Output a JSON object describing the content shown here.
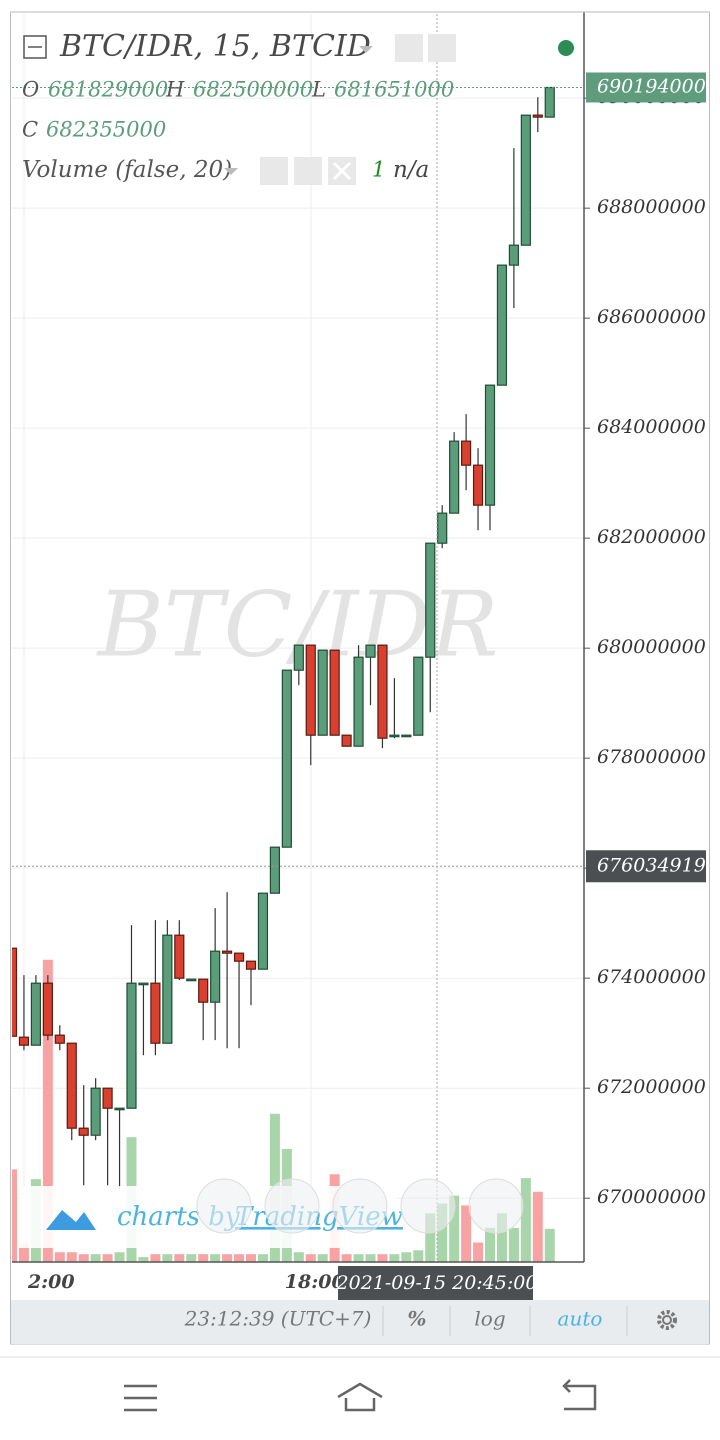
{
  "chart_data": {
    "type": "candlestick",
    "title": "BTC/IDR, 15, BTCID",
    "watermark": "BTC/IDR",
    "legend": {
      "open_label": "O",
      "open": 681829000,
      "high_label": "H",
      "high": 682500000,
      "low_label": "L",
      "low": 681651000,
      "close_label": "C",
      "close": 682355000
    },
    "volume_legend": {
      "name": "Volume (false, 20)",
      "index": 1,
      "value": "n/a"
    },
    "categories": [
      null,
      "2:00",
      null,
      null,
      null,
      null,
      null,
      null,
      null,
      null,
      null,
      null,
      null,
      null,
      null,
      null,
      null,
      null,
      null,
      null,
      null,
      null,
      null,
      null,
      null,
      "18:00",
      null,
      null,
      null,
      null,
      null,
      null,
      null,
      null,
      null,
      null,
      null,
      null,
      null,
      null,
      null,
      null,
      null,
      null,
      null,
      null
    ],
    "open": [
      674545000,
      672927000,
      672782000,
      673909000,
      672964000,
      672818000,
      671273000,
      671145000,
      672000000,
      671636000,
      671636000,
      673909000,
      673909000,
      672818000,
      674782000,
      673982000,
      673982000,
      673564000,
      674491000,
      674455000,
      674309000,
      674164000,
      675545000,
      676382000,
      679600000,
      680055000,
      678418000,
      679964000,
      678418000,
      678218000,
      679836000,
      680055000,
      678418000,
      678418000,
      678418000,
      679836000,
      681909000,
      682455000,
      683764000,
      683327000,
      682600000,
      684782000,
      686964000,
      687327000,
      689691000,
      689655000
    ],
    "high": [
      674545000,
      674055000,
      674055000,
      674055000,
      673145000,
      672818000,
      672055000,
      672182000,
      672000000,
      671636000,
      674964000,
      673909000,
      675055000,
      675055000,
      675055000,
      673982000,
      673982000,
      675273000,
      675564000,
      674455000,
      674309000,
      675545000,
      676382000,
      679600000,
      680055000,
      680055000,
      679964000,
      679964000,
      678418000,
      680055000,
      680055000,
      680055000,
      679455000,
      678418000,
      679836000,
      681909000,
      682600000,
      683927000,
      684255000,
      683636000,
      684782000,
      686964000,
      689091000,
      689691000,
      690018000,
      690194000
    ],
    "low": [
      672945000,
      672690000,
      672782000,
      672873000,
      672690000,
      671055000,
      670236000,
      671055000,
      670236000,
      670145000,
      671636000,
      672600000,
      672600000,
      672818000,
      673964000,
      673982000,
      672873000,
      672873000,
      672727000,
      672727000,
      673509000,
      674164000,
      675545000,
      676382000,
      679327000,
      677873000,
      678418000,
      678418000,
      678218000,
      678218000,
      678964000,
      678182000,
      678364000,
      678418000,
      678418000,
      678836000,
      681818000,
      682455000,
      682873000,
      682145000,
      682145000,
      684782000,
      686182000,
      687327000,
      689382000,
      689655000
    ],
    "close": [
      672945000,
      672782000,
      673909000,
      672964000,
      672818000,
      671273000,
      671145000,
      672000000,
      671636000,
      671636000,
      673909000,
      673909000,
      672818000,
      674782000,
      674000000,
      673982000,
      673564000,
      674491000,
      674455000,
      674309000,
      674164000,
      675545000,
      676382000,
      679600000,
      680055000,
      678418000,
      679964000,
      678418000,
      678218000,
      679836000,
      680055000,
      678364000,
      678418000,
      678418000,
      679836000,
      681909000,
      682455000,
      683764000,
      683327000,
      682600000,
      684782000,
      686964000,
      687327000,
      689691000,
      689655000,
      690194000
    ],
    "volume": [
      95,
      20,
      85,
      310,
      10,
      10,
      8,
      8,
      8,
      10,
      128,
      5,
      8,
      8,
      8,
      8,
      8,
      8,
      8,
      8,
      8,
      8,
      152,
      116,
      10,
      8,
      8,
      90,
      8,
      8,
      8,
      8,
      8,
      10,
      12,
      50,
      60,
      68,
      58,
      20,
      35,
      50,
      35,
      86,
      72,
      34
    ],
    "vlim": [
      0,
      320
    ],
    "up_color": "#5b9c7a",
    "down_color": "#d8412f",
    "up_volume_color": "#a8d5a9",
    "down_volume_color": "#f7a3a3",
    "ylim": [
      668840000,
      691530000
    ],
    "yticks": [
      670000000,
      672000000,
      674000000,
      676000000,
      678000000,
      680000000,
      682000000,
      684000000,
      686000000,
      688000000,
      690000000
    ],
    "grid": true,
    "last_price": 690194000,
    "crosshair": {
      "price": 676034919,
      "time": "2021-09-15 20:45:00"
    },
    "branding": {
      "prefix": "charts by",
      "name": "TradingView"
    }
  },
  "toolbar": {
    "clock": "23:12:39 (UTC+7)",
    "percent": "%",
    "log": "log",
    "auto": "auto"
  }
}
